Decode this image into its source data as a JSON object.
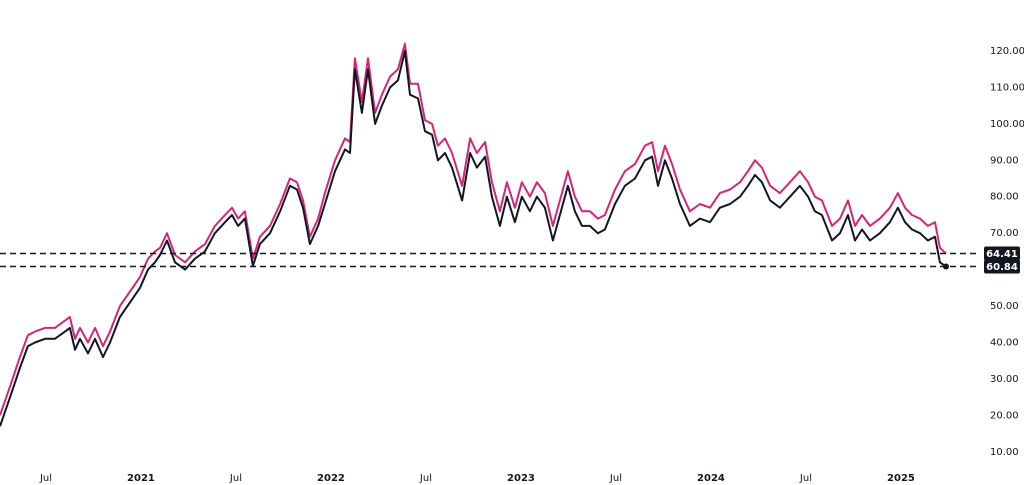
{
  "chart_data": {
    "type": "line",
    "x": [
      2020.258,
      2020.311,
      2020.363,
      2020.405,
      2020.442,
      2020.495,
      2020.547,
      2020.6,
      2020.626,
      2020.653,
      2020.679,
      2020.721,
      2020.758,
      2020.8,
      2020.837,
      2020.889,
      2020.942,
      2020.995,
      2021.037,
      2021.074,
      2021.1,
      2021.137,
      2021.179,
      2021.232,
      2021.284,
      2021.337,
      2021.389,
      2021.442,
      2021.479,
      2021.511,
      2021.547,
      2021.589,
      2021.626,
      2021.679,
      2021.732,
      2021.784,
      2021.821,
      2021.853,
      2021.889,
      2021.932,
      2021.968,
      2022.021,
      2022.074,
      2022.1,
      2022.126,
      2022.163,
      2022.195,
      2022.232,
      2022.268,
      2022.311,
      2022.353,
      2022.389,
      2022.416,
      2022.458,
      2022.495,
      2022.532,
      2022.563,
      2022.6,
      2022.637,
      2022.69,
      2022.732,
      2022.768,
      2022.811,
      2022.847,
      2022.889,
      2022.926,
      2022.968,
      2023.005,
      2023.047,
      2023.084,
      2023.126,
      2023.168,
      2023.205,
      2023.247,
      2023.284,
      2023.321,
      2023.363,
      2023.405,
      2023.442,
      2023.495,
      2023.547,
      2023.6,
      2023.653,
      2023.69,
      2023.721,
      2023.758,
      2023.795,
      2023.837,
      2023.889,
      2023.942,
      2023.995,
      2024.047,
      2024.1,
      2024.153,
      2024.195,
      2024.232,
      2024.268,
      2024.311,
      2024.363,
      2024.416,
      2024.468,
      2024.511,
      2024.547,
      2024.584,
      2024.637,
      2024.679,
      2024.721,
      2024.758,
      2024.795,
      2024.837,
      2024.889,
      2024.942,
      2024.984,
      2025.021,
      2025.058,
      2025.1,
      2025.142,
      2025.179,
      2025.205,
      2025.237
    ],
    "series": [
      {
        "color": "#131722",
        "values": [
          17,
          25,
          33,
          39,
          40,
          41,
          41,
          43,
          44,
          38,
          41,
          37,
          41,
          36,
          40,
          47,
          51,
          55,
          60,
          62,
          64,
          68,
          62,
          60,
          63,
          65,
          70,
          73,
          75,
          72,
          74,
          61,
          67,
          70,
          76,
          83,
          82,
          77,
          67,
          72,
          78,
          87,
          93,
          92,
          115,
          103,
          115,
          100,
          105,
          110,
          112,
          120,
          108,
          107,
          98,
          97,
          90,
          92,
          88,
          79,
          92,
          88,
          91,
          80,
          72,
          80,
          73,
          80,
          76,
          80,
          77,
          68,
          75,
          83,
          76,
          72,
          72,
          70,
          71,
          78,
          83,
          85,
          90,
          91,
          83,
          90,
          85,
          78,
          72,
          74,
          73,
          77,
          78,
          80,
          83,
          86,
          84,
          79,
          77,
          80,
          83,
          80,
          76,
          75,
          68,
          70,
          75,
          68,
          71,
          68,
          70,
          73,
          77,
          73,
          71,
          70,
          68,
          69,
          62,
          60.84
        ]
      },
      {
        "color": "#d6247a",
        "values": [
          20,
          28,
          36,
          42,
          43,
          44,
          44,
          46,
          47,
          41,
          44,
          40,
          44,
          39,
          43,
          50,
          54,
          58,
          63,
          65,
          66,
          70,
          64,
          62,
          65,
          67,
          72,
          75,
          77,
          74,
          76,
          63,
          69,
          72,
          78,
          85,
          84,
          79,
          69,
          74,
          81,
          90,
          96,
          95,
          118,
          106,
          118,
          103,
          108,
          113,
          115,
          122,
          111,
          111,
          101,
          100,
          94,
          96,
          92,
          83,
          96,
          92,
          95,
          84,
          76,
          84,
          77,
          84,
          80,
          84,
          81,
          72,
          79,
          87,
          80,
          76,
          76,
          74,
          75,
          82,
          87,
          89,
          94,
          95,
          87,
          94,
          89,
          82,
          76,
          78,
          77,
          81,
          82,
          84,
          87,
          90,
          88,
          83,
          81,
          84,
          87,
          84,
          80,
          79,
          72,
          74,
          79,
          72,
          75,
          72,
          74,
          77,
          81,
          77,
          75,
          74,
          72,
          73,
          66,
          64.41
        ]
      }
    ],
    "xlim": [
      2020.258,
      2025.416
    ],
    "xticks": [
      {
        "value": 2020.5,
        "label": "Jul"
      },
      2021,
      {
        "value": 2021.5,
        "label": "Jul"
      },
      2022,
      {
        "value": 2022.5,
        "label": "Jul"
      },
      2023,
      {
        "value": 2023.5,
        "label": "Jul"
      },
      2024,
      {
        "value": 2024.5,
        "label": "Jul"
      },
      2025
    ],
    "ylim": [
      5,
      134
    ],
    "yticks": [
      {
        "value": 10,
        "label": "10.00"
      },
      {
        "value": 20,
        "label": "20.00"
      },
      {
        "value": 30,
        "label": "30.00"
      },
      {
        "value": 40,
        "label": "40.00"
      },
      {
        "value": 50,
        "label": "50.00"
      },
      {
        "value": 60,
        "label": "60.00"
      },
      {
        "value": 70,
        "label": "70.00"
      },
      {
        "value": 80,
        "label": "80.00"
      },
      {
        "value": 90,
        "label": "90.00"
      },
      {
        "value": 100,
        "label": "100.00"
      },
      {
        "value": 110,
        "label": "110.00"
      },
      {
        "value": 120,
        "label": "120.00"
      }
    ]
  }
}
